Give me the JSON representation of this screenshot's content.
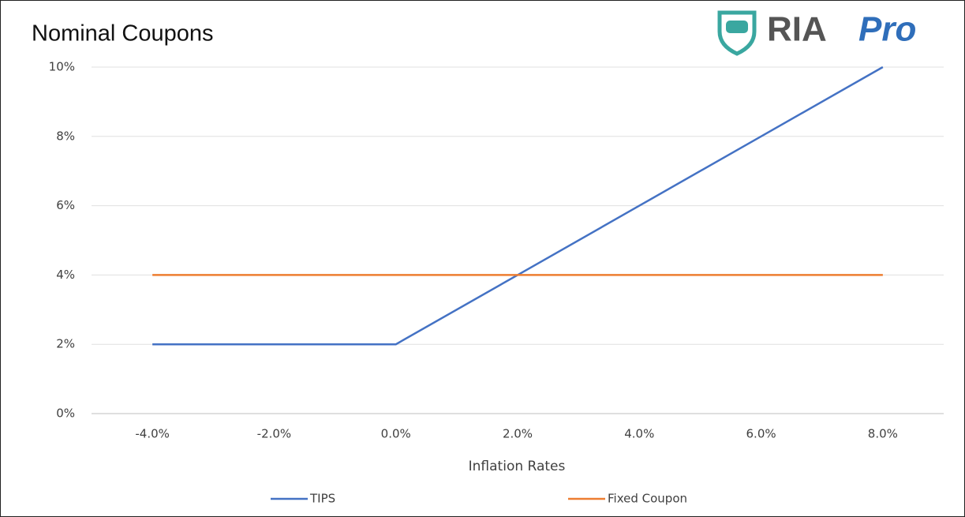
{
  "chart_data": {
    "type": "line",
    "title": "Nominal Coupons",
    "logo": [
      "RIA",
      "Pro"
    ],
    "x_label": "Inflation Rates",
    "categories": [
      "-4.0%",
      "-2.0%",
      "0.0%",
      "2.0%",
      "4.0%",
      "6.0%",
      "8.0%"
    ],
    "series": [
      {
        "name": "TIPS",
        "color": "#4472c4",
        "values": [
          2,
          2,
          2,
          4,
          6,
          8,
          10
        ]
      },
      {
        "name": "Fixed Coupon",
        "color": "#ed7d31",
        "values": [
          4,
          4,
          4,
          4,
          4,
          4,
          4
        ]
      }
    ],
    "ylim": [
      0,
      10
    ],
    "yticks": [
      {
        "value": 0,
        "label": "0%"
      },
      {
        "value": 2,
        "label": "2%"
      },
      {
        "value": 4,
        "label": "4%"
      },
      {
        "value": 6,
        "label": "6%"
      },
      {
        "value": 8,
        "label": "8%"
      },
      {
        "value": 10,
        "label": "10%"
      }
    ],
    "grid": true,
    "legend": "bottom"
  }
}
